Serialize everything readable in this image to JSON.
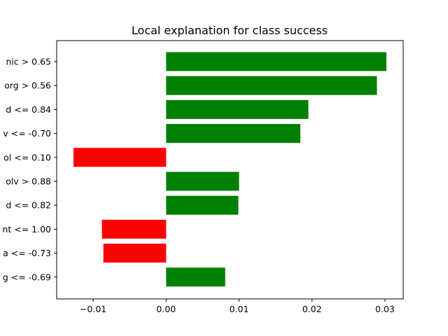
{
  "chart_data": {
    "type": "bar",
    "orientation": "horizontal",
    "title": "Local explanation for class success",
    "xlabel": "",
    "ylabel": "",
    "xlim": [
      -0.015,
      0.0325
    ],
    "xticks": [
      -0.01,
      0.0,
      0.01,
      0.02,
      0.03
    ],
    "xtick_labels": [
      "−0.01",
      "0.00",
      "0.01",
      "0.02",
      "0.03"
    ],
    "grid": false,
    "categories": [
      "nic > 0.65",
      "org > 0.56",
      "d <= 0.84",
      "v <= -0.70",
      "ol <= 0.10",
      "olv > 0.88",
      "d <= 0.82",
      "nt <= 1.00",
      "a <= -0.73",
      "g <= -0.69"
    ],
    "values": [
      0.0302,
      0.0289,
      0.0195,
      0.0184,
      -0.0127,
      0.01,
      0.0099,
      -0.0088,
      -0.0086,
      0.0081
    ],
    "colors": {
      "positive": "#008000",
      "negative": "#ff0000"
    }
  }
}
